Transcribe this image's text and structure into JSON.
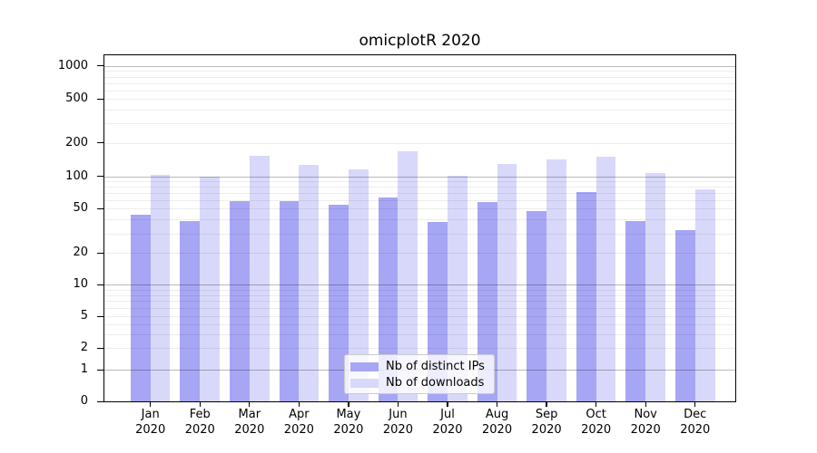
{
  "chart_data": {
    "type": "bar",
    "title": "omicplotR 2020",
    "x": {
      "categories": [
        "Jan",
        "Feb",
        "Mar",
        "Apr",
        "May",
        "Jun",
        "Jul",
        "Aug",
        "Sep",
        "Oct",
        "Nov",
        "Dec"
      ],
      "year": "2020"
    },
    "y_axis": {
      "scale": "pseudo-log",
      "ticks": [
        0,
        1,
        2,
        5,
        10,
        20,
        50,
        100,
        200,
        500,
        1000
      ],
      "range": [
        0,
        1000
      ],
      "major_grid_at": [
        1,
        10,
        100,
        1000
      ],
      "grid": "on"
    },
    "series": [
      {
        "name": "Nb of distinct IPs",
        "color": "#a6a6f5",
        "values": [
          44,
          39,
          59,
          59,
          54,
          64,
          38,
          58,
          48,
          71,
          39,
          32
        ]
      },
      {
        "name": "Nb of downloads",
        "color": "#d8d8fa",
        "values": [
          102,
          100,
          152,
          127,
          115,
          167,
          101,
          129,
          142,
          149,
          107,
          76
        ]
      }
    ],
    "legend": {
      "position": "lower-center",
      "entries": [
        "Nb of distinct IPs",
        "Nb of downloads"
      ]
    }
  }
}
